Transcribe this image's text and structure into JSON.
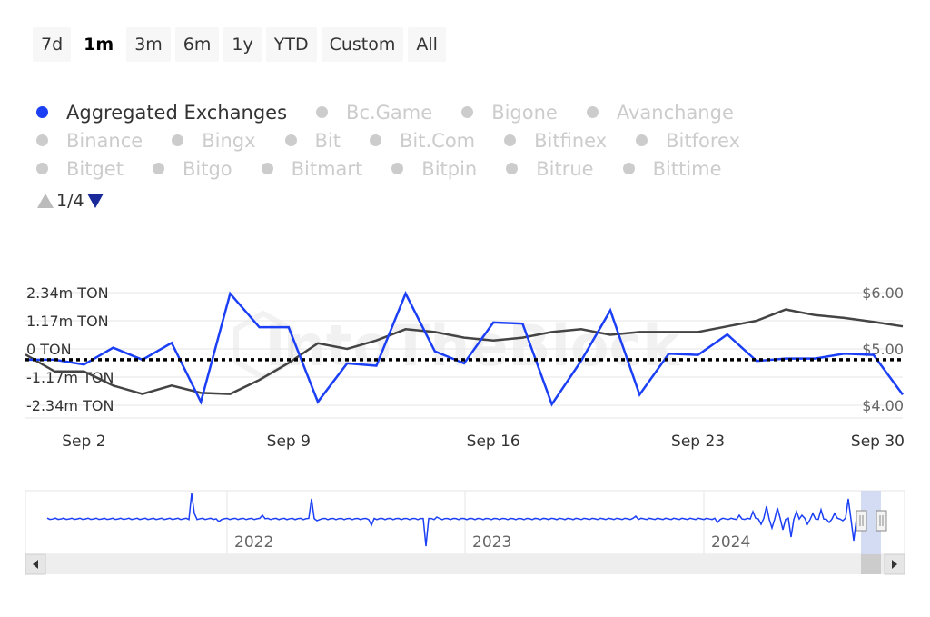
{
  "range_selector": {
    "buttons": [
      "7d",
      "1m",
      "3m",
      "6m",
      "1y",
      "YTD",
      "Custom",
      "All"
    ],
    "selected": "1m"
  },
  "legend": {
    "items": [
      {
        "name": "Aggregated Exchanges",
        "active": true,
        "color": "#1b3ff5"
      },
      {
        "name": "Bc.Game",
        "active": false
      },
      {
        "name": "Bigone",
        "active": false
      },
      {
        "name": "Avanchange",
        "active": false
      },
      {
        "name": "Binance",
        "active": false
      },
      {
        "name": "Bingx",
        "active": false
      },
      {
        "name": "Bit",
        "active": false
      },
      {
        "name": "Bit.Com",
        "active": false
      },
      {
        "name": "Bitfinex",
        "active": false
      },
      {
        "name": "Bitforex",
        "active": false
      },
      {
        "name": "Bitget",
        "active": false
      },
      {
        "name": "Bitgo",
        "active": false
      },
      {
        "name": "Bitmart",
        "active": false
      },
      {
        "name": "Bitpin",
        "active": false
      },
      {
        "name": "Bitrue",
        "active": false
      },
      {
        "name": "Bittime",
        "active": false
      }
    ],
    "page_label": "1/4",
    "inactive_color": "#cccccc"
  },
  "watermark": "IntoTheBlock",
  "chart_data": {
    "type": "line",
    "x": [
      "Aug 31",
      "Sep 1",
      "Sep 2",
      "Sep 3",
      "Sep 4",
      "Sep 5",
      "Sep 6",
      "Sep 7",
      "Sep 8",
      "Sep 9",
      "Sep 10",
      "Sep 11",
      "Sep 12",
      "Sep 13",
      "Sep 14",
      "Sep 15",
      "Sep 16",
      "Sep 17",
      "Sep 18",
      "Sep 19",
      "Sep 20",
      "Sep 21",
      "Sep 22",
      "Sep 23",
      "Sep 24",
      "Sep 25",
      "Sep 26",
      "Sep 27",
      "Sep 28",
      "Sep 29",
      "Sep 30"
    ],
    "x_tick_labels": [
      "Sep 2",
      "Sep 9",
      "Sep 16",
      "Sep 23",
      "Sep 30"
    ],
    "y_left": {
      "ticks": [
        "2.34m TON",
        "1.17m TON",
        "0 TON",
        "-1.17m TON",
        "-2.34m TON"
      ],
      "range": [
        -2.34,
        2.34
      ],
      "unit": "m TON"
    },
    "y_right": {
      "ticks": [
        "$6.00",
        "$5.00",
        "$4.00"
      ],
      "range": [
        4.0,
        6.0
      ]
    },
    "series": [
      {
        "name": "Aggregated Exchanges",
        "axis": "left",
        "color": "#1b3ff5",
        "values": [
          -0.45,
          -0.45,
          -0.65,
          0.05,
          -0.45,
          0.25,
          -2.2,
          2.3,
          0.9,
          0.9,
          -2.2,
          -0.6,
          -0.7,
          2.3,
          -0.1,
          -0.6,
          1.1,
          1.05,
          -2.3,
          -0.5,
          1.6,
          -1.9,
          -0.2,
          -0.25,
          0.6,
          -0.5,
          -0.4,
          -0.4,
          -0.2,
          -0.25,
          -1.9
        ]
      },
      {
        "axis": "right",
        "color": "#444444",
        "values": [
          4.9,
          4.6,
          4.6,
          4.35,
          4.2,
          4.35,
          4.22,
          4.2,
          4.45,
          4.75,
          5.1,
          5.0,
          5.15,
          5.35,
          5.3,
          5.2,
          5.15,
          5.2,
          5.3,
          5.35,
          5.25,
          5.3,
          5.3,
          5.3,
          5.4,
          5.5,
          5.7,
          5.6,
          5.55,
          5.48,
          5.4
        ]
      }
    ],
    "reference_line": {
      "style": "dotted",
      "value": -0.45,
      "axis": "left"
    },
    "grid": "horizontal",
    "legend_position": "top-left"
  },
  "navigator": {
    "year_labels": [
      "2022",
      "2023",
      "2024"
    ]
  }
}
